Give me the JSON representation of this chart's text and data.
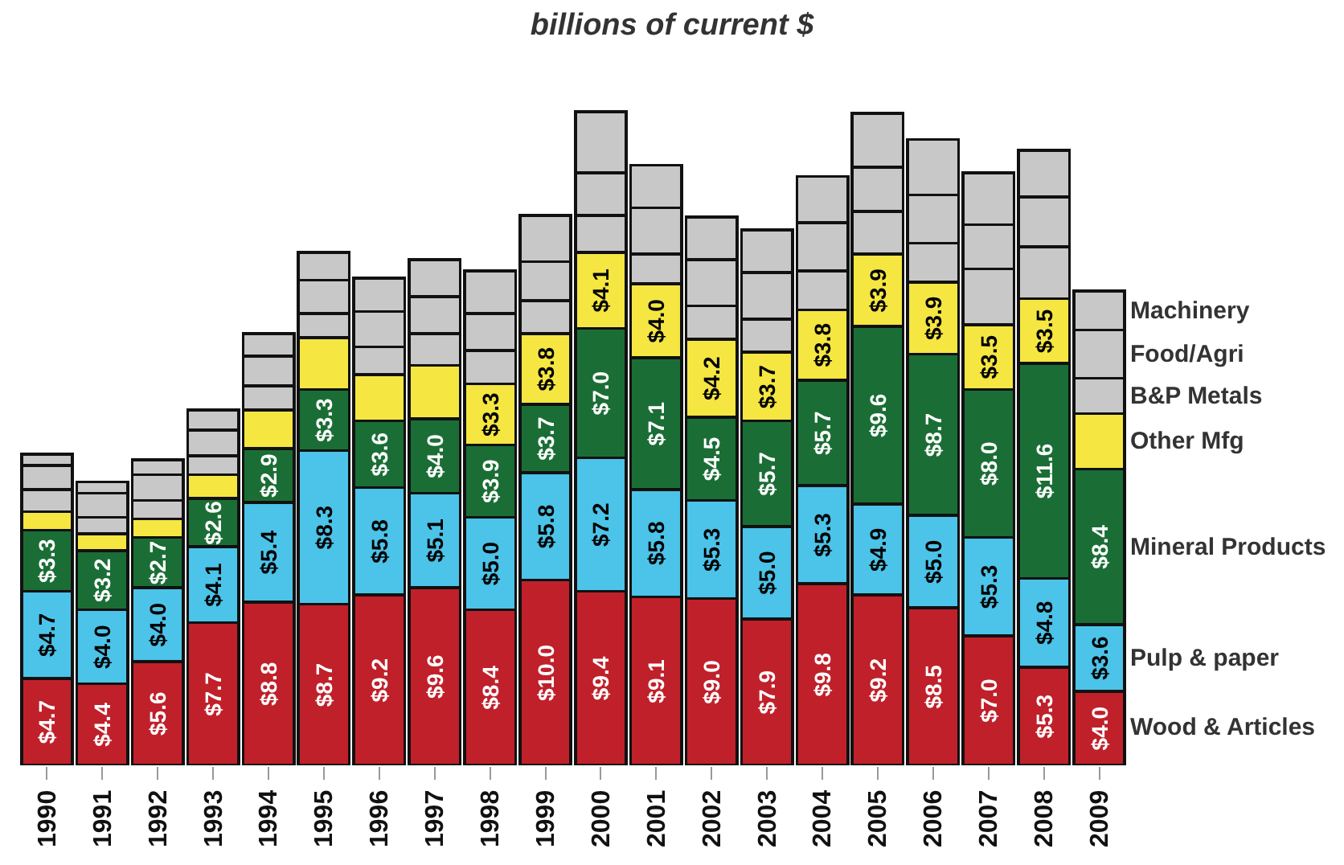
{
  "chart_data": {
    "type": "bar",
    "subtitle": "billions of current $",
    "stacked": true,
    "legend": false,
    "categories": [
      "1990",
      "1991",
      "1992",
      "1993",
      "1994",
      "1995",
      "1996",
      "1997",
      "1998",
      "1999",
      "2000",
      "2001",
      "2002",
      "2003",
      "2004",
      "2005",
      "2006",
      "2007",
      "2008",
      "2009"
    ],
    "series": [
      {
        "name": "Wood & Articles",
        "color": "#c0202a",
        "values": [
          4.7,
          4.4,
          5.6,
          7.7,
          8.8,
          8.7,
          9.2,
          9.6,
          8.4,
          10.0,
          9.4,
          9.1,
          9.0,
          7.9,
          9.8,
          9.2,
          8.5,
          7.0,
          5.3,
          4.0
        ],
        "value_labels": [
          "$4.7",
          "$4.4",
          "$5.6",
          "$7.7",
          "$8.8",
          "$8.7",
          "$9.2",
          "$9.6",
          "$8.4",
          "$10.0",
          "$9.4",
          "$9.1",
          "$9.0",
          "$7.9",
          "$9.8",
          "$9.2",
          "$8.5",
          "$7.0",
          "$5.3",
          "$4.0"
        ]
      },
      {
        "name": "Pulp & paper",
        "color": "#4cc3e8",
        "values": [
          4.7,
          4.0,
          4.0,
          4.1,
          5.4,
          8.3,
          5.8,
          5.1,
          5.0,
          5.8,
          7.2,
          5.8,
          5.3,
          5.0,
          5.3,
          4.9,
          5.0,
          5.3,
          4.8,
          3.6
        ],
        "value_labels": [
          "$4.7",
          "$4.0",
          "$4.0",
          "$4.1",
          "$5.4",
          "$8.3",
          "$5.8",
          "$5.1",
          "$5.0",
          "$5.8",
          "$7.2",
          "$5.8",
          "$5.3",
          "$5.0",
          "$5.3",
          "$4.9",
          "$5.0",
          "$5.3",
          "$4.8",
          "$3.6"
        ]
      },
      {
        "name": "Mineral Products",
        "color": "#1a6e35",
        "values": [
          3.3,
          3.2,
          2.7,
          2.6,
          2.9,
          3.3,
          3.6,
          4.0,
          3.9,
          3.7,
          7.0,
          7.1,
          4.5,
          5.7,
          5.7,
          9.6,
          8.7,
          8.0,
          11.6,
          8.4
        ],
        "value_labels": [
          "$3.3",
          "$3.2",
          "$2.7",
          "$2.6",
          "$2.9",
          "$3.3",
          "$3.6",
          "$4.0",
          "$3.9",
          "$3.7",
          "$7.0",
          "$7.1",
          "$4.5",
          "$5.7",
          "$5.7",
          "$9.6",
          "$8.7",
          "$8.0",
          "$11.6",
          "$8.4"
        ]
      },
      {
        "name": "Other Mfg",
        "color": "#f5e642",
        "values": [
          1.0,
          0.9,
          1.0,
          1.3,
          2.1,
          2.8,
          2.5,
          2.9,
          3.3,
          3.8,
          4.1,
          4.0,
          4.2,
          3.7,
          3.8,
          3.9,
          3.9,
          3.5,
          3.5,
          3.0
        ],
        "value_labels": [
          null,
          null,
          null,
          null,
          null,
          null,
          null,
          null,
          "$3.3",
          "$3.8",
          "$4.1",
          "$4.0",
          "$4.2",
          "$3.7",
          "$3.8",
          "$3.9",
          "$3.9",
          "$3.5",
          "$3.5",
          null
        ]
      },
      {
        "name": "B&P Metals",
        "color": "#c8c8c8",
        "values": [
          1.2,
          0.9,
          1.0,
          1.0,
          1.3,
          1.3,
          1.5,
          1.7,
          1.8,
          1.8,
          2.0,
          1.6,
          1.8,
          1.8,
          2.1,
          2.3,
          2.1,
          3.0,
          2.8,
          1.9
        ]
      },
      {
        "name": "Food/Agri",
        "color": "#c8c8c8",
        "values": [
          1.3,
          1.3,
          1.4,
          1.4,
          1.6,
          1.8,
          1.9,
          2.0,
          2.0,
          2.1,
          2.3,
          2.5,
          2.5,
          2.5,
          2.6,
          2.4,
          2.6,
          2.4,
          2.7,
          2.6
        ]
      },
      {
        "name": "Machinery",
        "color": "#c8c8c8",
        "values": [
          0.6,
          0.6,
          0.8,
          1.1,
          1.2,
          1.5,
          1.8,
          2.0,
          2.3,
          2.5,
          3.3,
          2.3,
          2.3,
          2.3,
          2.5,
          2.9,
          3.0,
          2.8,
          2.5,
          2.1
        ]
      }
    ]
  }
}
